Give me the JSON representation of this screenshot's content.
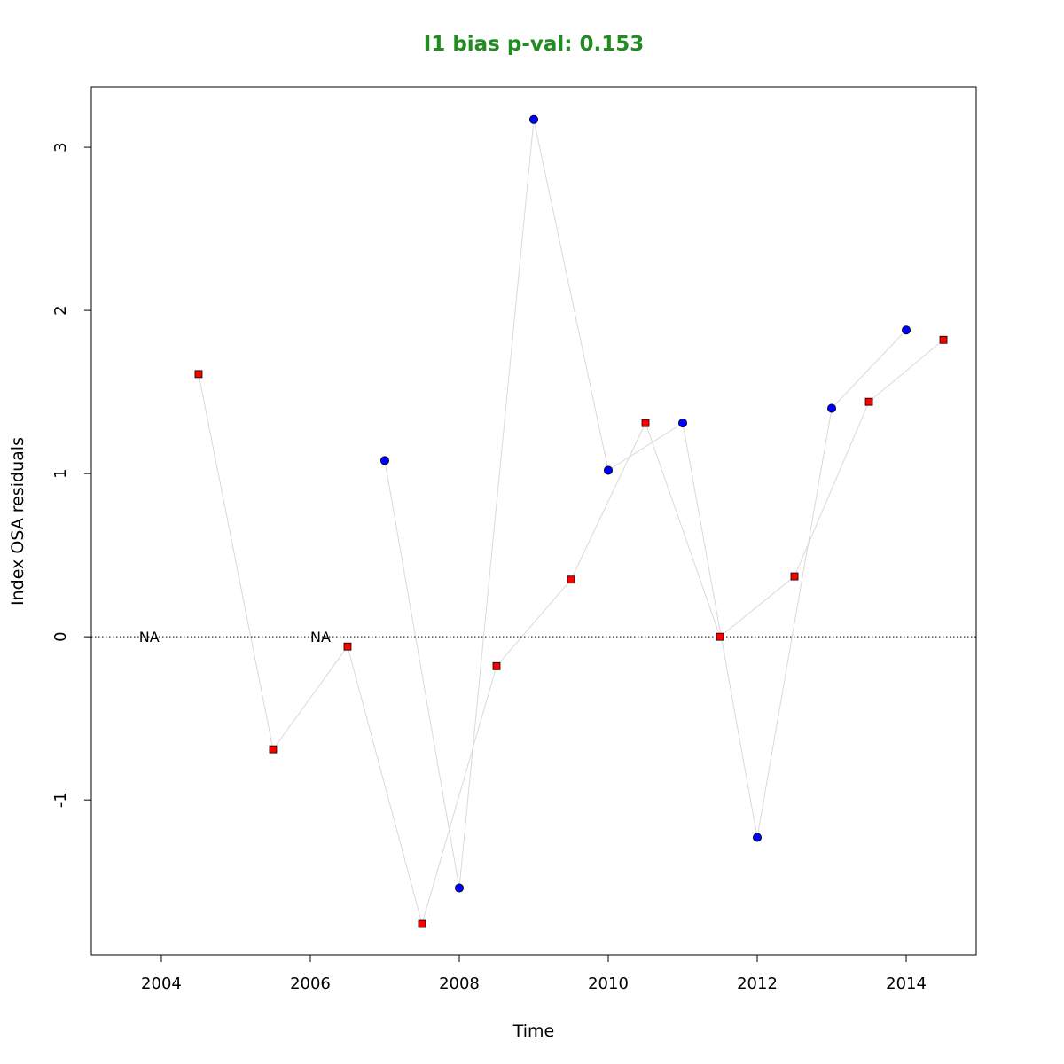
{
  "chart_data": {
    "type": "scatter",
    "title": "I1 bias p-val: 0.153",
    "title_color": "#228B22",
    "xlabel": "Time",
    "ylabel": "Index OSA residuals",
    "xlim": [
      2003.06,
      2014.94
    ],
    "ylim": [
      -1.95,
      3.37
    ],
    "xticks": [
      2004,
      2006,
      2008,
      2010,
      2012,
      2014
    ],
    "yticks": [
      -1,
      0,
      1,
      2,
      3
    ],
    "reference_line": {
      "y": 0,
      "style": "dotted"
    },
    "connector_color": "#d9d9d9",
    "series": [
      {
        "marker": "circle",
        "fill": "#0000ff",
        "points": [
          {
            "x": 2007,
            "y": 1.08
          },
          {
            "x": 2008,
            "y": -1.54
          },
          {
            "x": 2009,
            "y": 3.17
          },
          {
            "x": 2010,
            "y": 1.02
          },
          {
            "x": 2011,
            "y": 1.31
          },
          {
            "x": 2012,
            "y": -1.23
          },
          {
            "x": 2013,
            "y": 1.4
          },
          {
            "x": 2014,
            "y": 1.88
          }
        ]
      },
      {
        "marker": "square",
        "fill": "#ff0000",
        "points": [
          {
            "x": 2004.5,
            "y": 1.61
          },
          {
            "x": 2005.5,
            "y": -0.69
          },
          {
            "x": 2006.5,
            "y": -0.06
          },
          {
            "x": 2007.5,
            "y": -1.76
          },
          {
            "x": 2008.5,
            "y": -0.18
          },
          {
            "x": 2009.5,
            "y": 0.35
          },
          {
            "x": 2010.5,
            "y": 1.31
          },
          {
            "x": 2011.5,
            "y": 0.0
          },
          {
            "x": 2012.5,
            "y": 0.37
          },
          {
            "x": 2013.5,
            "y": 1.44
          },
          {
            "x": 2014.5,
            "y": 1.82
          }
        ]
      }
    ],
    "na_labels": [
      {
        "text": "NA",
        "x": 2003.7,
        "y": 0
      },
      {
        "text": "NA",
        "x": 2006.0,
        "y": 0
      }
    ]
  }
}
